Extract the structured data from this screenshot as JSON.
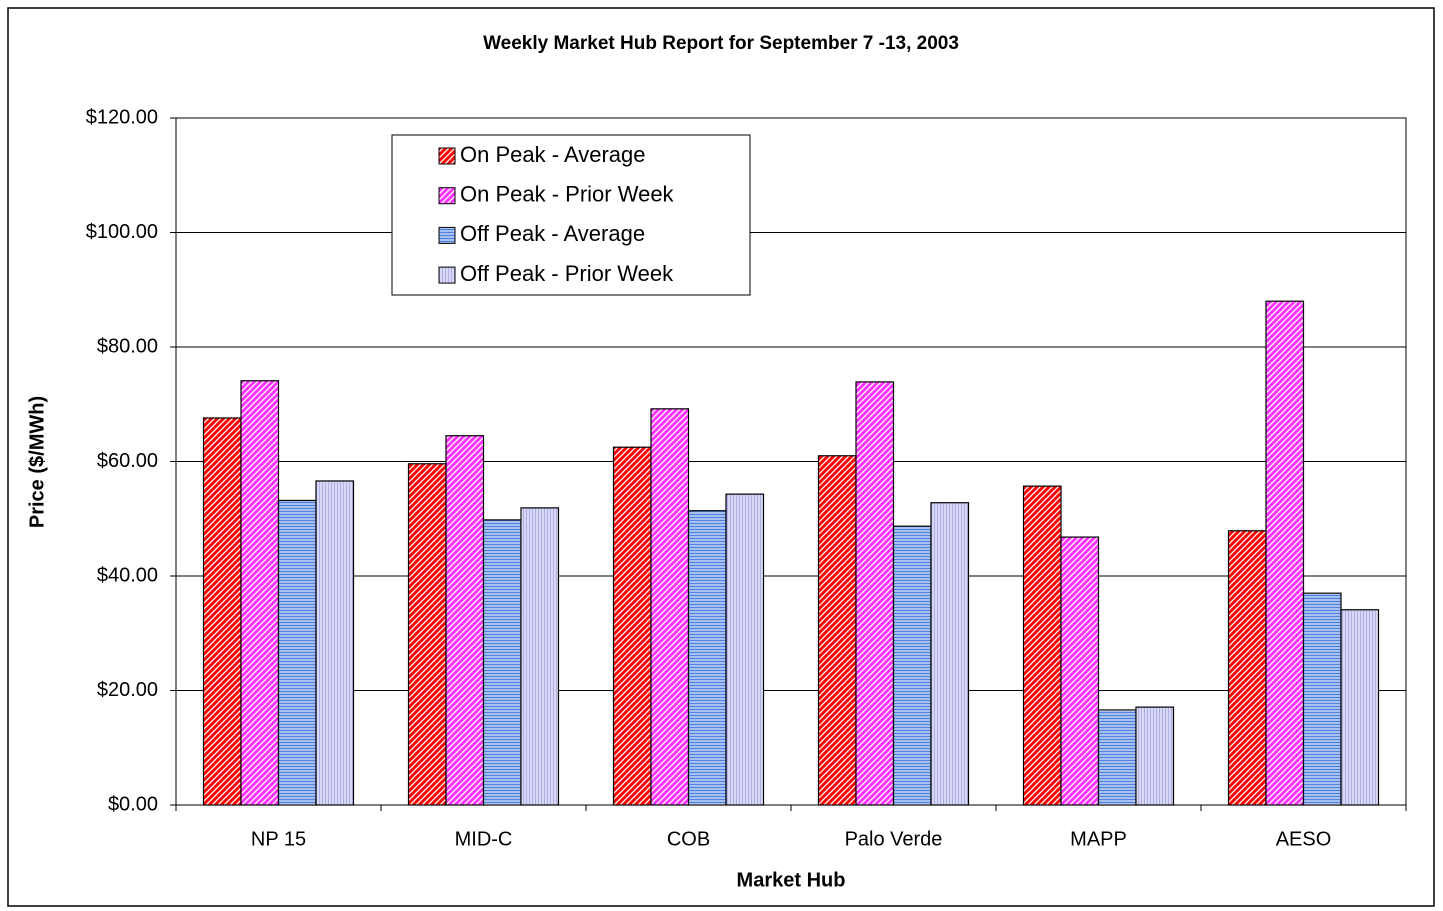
{
  "chart_data": {
    "type": "bar",
    "title": "Weekly Market Hub Report for September 7 -13,  2003",
    "x_label": "Market Hub",
    "y_label": "Price ($/MWh)",
    "categories": [
      "NP 15",
      "MID-C",
      "COB",
      "Palo Verde",
      "MAPP",
      "AESO"
    ],
    "series": [
      {
        "name": "On Peak - Average",
        "color": "#ff0000",
        "hatch": "diagonal",
        "values": [
          67.6,
          59.6,
          62.5,
          61.0,
          55.7,
          47.9
        ]
      },
      {
        "name": "On Peak - Prior Week",
        "color": "#ff33ff",
        "hatch": "diagonal",
        "values": [
          74.1,
          64.5,
          69.2,
          73.9,
          46.8,
          88.0
        ]
      },
      {
        "name": "Off Peak - Average",
        "color": "#4f81e0",
        "hatch": "horizontal",
        "values": [
          53.2,
          49.8,
          51.4,
          48.7,
          16.6,
          37.0
        ]
      },
      {
        "name": "Off Peak - Prior Week",
        "color": "#b0b0e8",
        "hatch": "vertical",
        "values": [
          56.6,
          51.9,
          54.3,
          52.8,
          17.1,
          34.1
        ]
      }
    ],
    "ylim": [
      0,
      120
    ],
    "yticks": [
      {
        "value": 0,
        "label": "$0.00"
      },
      {
        "value": 20,
        "label": "$20.00"
      },
      {
        "value": 40,
        "label": "$40.00"
      },
      {
        "value": 60,
        "label": "$60.00"
      },
      {
        "value": 80,
        "label": "$80.00"
      },
      {
        "value": 100,
        "label": "$100.00"
      },
      {
        "value": 120,
        "label": "$120.00"
      }
    ],
    "grid": true,
    "legend": "top-left"
  }
}
